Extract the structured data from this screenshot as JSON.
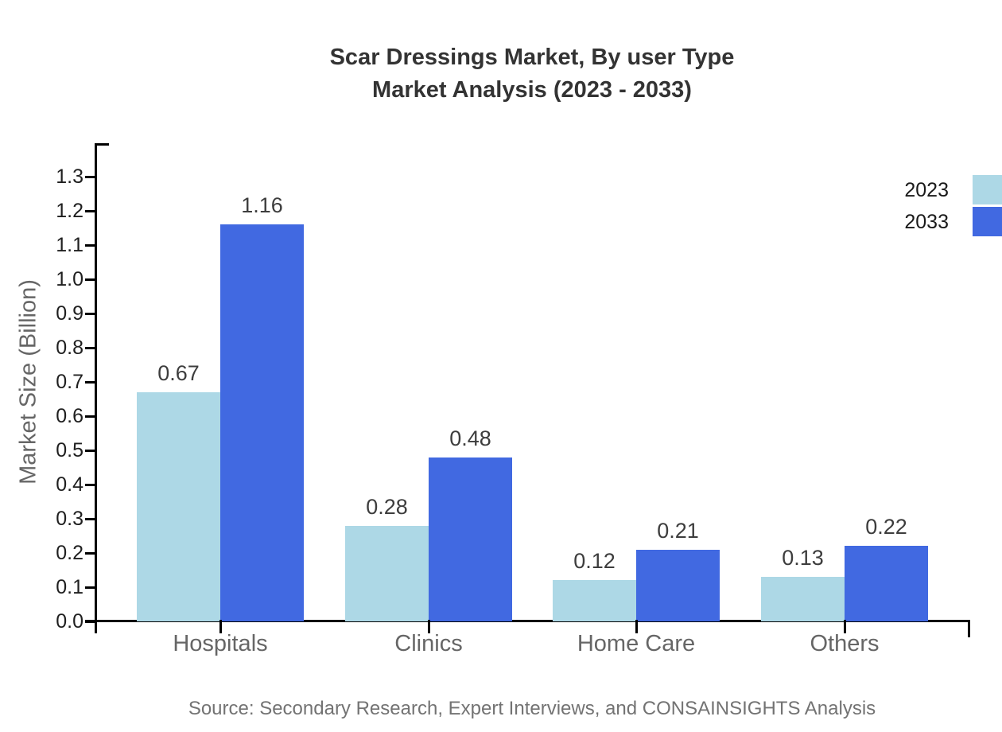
{
  "chart_data": {
    "type": "bar",
    "title_line1": "Scar Dressings Market, By user Type",
    "title_line2": "Market Analysis (2023 - 2033)",
    "ylabel": "Market Size (Billion)",
    "categories": [
      "Hospitals",
      "Clinics",
      "Home Care",
      "Others"
    ],
    "series": [
      {
        "name": "2023",
        "color": "#ADD8E6",
        "values": [
          0.67,
          0.28,
          0.12,
          0.13
        ]
      },
      {
        "name": "2033",
        "color": "#4169E1",
        "values": [
          1.16,
          0.48,
          0.21,
          0.22
        ]
      }
    ],
    "ylim": [
      0.0,
      1.3
    ],
    "ytick_step": 0.1,
    "yticks": [
      "0.0",
      "0.1",
      "0.2",
      "0.3",
      "0.4",
      "0.5",
      "0.6",
      "0.7",
      "0.8",
      "0.9",
      "1.0",
      "1.1",
      "1.2",
      "1.3"
    ],
    "grid": false,
    "legend_position": "top-right",
    "value_labels_shown": true,
    "source": "Source: Secondary Research, Expert Interviews, and CONSAINSIGHTS Analysis",
    "colors": {
      "series_2023": "#ADD8E6",
      "series_2033": "#4169E1",
      "axis": "#000000",
      "title_text": "#333333",
      "muted_text": "#666666",
      "source_text": "#737373"
    }
  }
}
